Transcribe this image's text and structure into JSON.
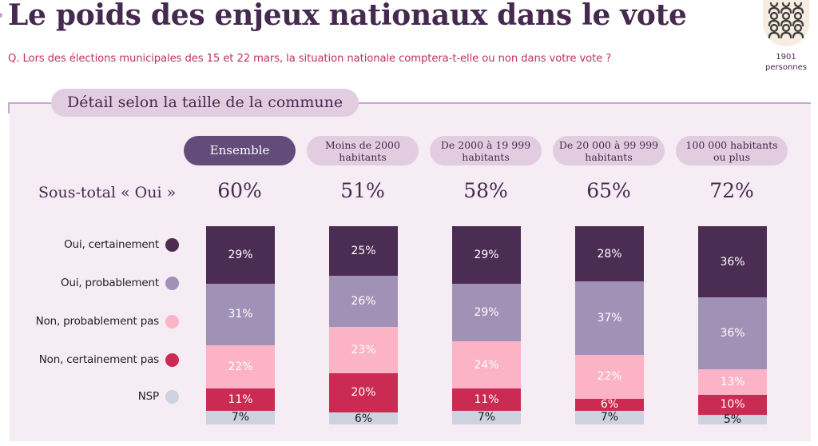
{
  "header": {
    "title": "Le poids des enjeux nationaux dans le vote",
    "question": "Q. Lors des élections municipales des 15 et 22 mars, la situation nationale comptera-t-elle ou non dans votre vote ?",
    "sample": {
      "icon": "people-group-icon",
      "count": "1901",
      "label": "personnes"
    }
  },
  "section": {
    "title": "Détail selon la taille de la commune"
  },
  "subtotal": {
    "label": "Sous-total « Oui »"
  },
  "colors": {
    "oui_certainement": "#4b2c52",
    "oui_probablement": "#a191b7",
    "non_probablement_pas": "#fbb3c5",
    "non_certainement_pas": "#cb2b53",
    "nsp": "#cdd2e0"
  },
  "chart_data": {
    "type": "bar",
    "stacked": true,
    "percent": true,
    "title": "Le poids des enjeux nationaux dans le vote",
    "subtitle": "Détail selon la taille de la commune",
    "categories": [
      "Ensemble",
      "Moins de 2000 habitants",
      "De 2000 à 19 999 habitants",
      "De 20 000 à 99 999 habitants",
      "100 000 habitants ou plus"
    ],
    "subtotal_oui": [
      "60%",
      "51%",
      "58%",
      "65%",
      "72%"
    ],
    "legend": [
      "Oui, certainement",
      "Oui, probablement",
      "Non, probablement pas",
      "Non, certainement pas",
      "NSP"
    ],
    "legend_position": "left",
    "series": [
      {
        "name": "Oui, certainement",
        "values": [
          29,
          25,
          29,
          28,
          36
        ]
      },
      {
        "name": "Oui, probablement",
        "values": [
          31,
          26,
          29,
          37,
          36
        ]
      },
      {
        "name": "Non, probablement pas",
        "values": [
          22,
          23,
          24,
          22,
          13
        ]
      },
      {
        "name": "Non, certainement pas",
        "values": [
          11,
          20,
          11,
          6,
          10
        ]
      },
      {
        "name": "NSP",
        "values": [
          7,
          6,
          7,
          7,
          5
        ]
      }
    ],
    "ylim": [
      0,
      100
    ],
    "grid": false
  }
}
